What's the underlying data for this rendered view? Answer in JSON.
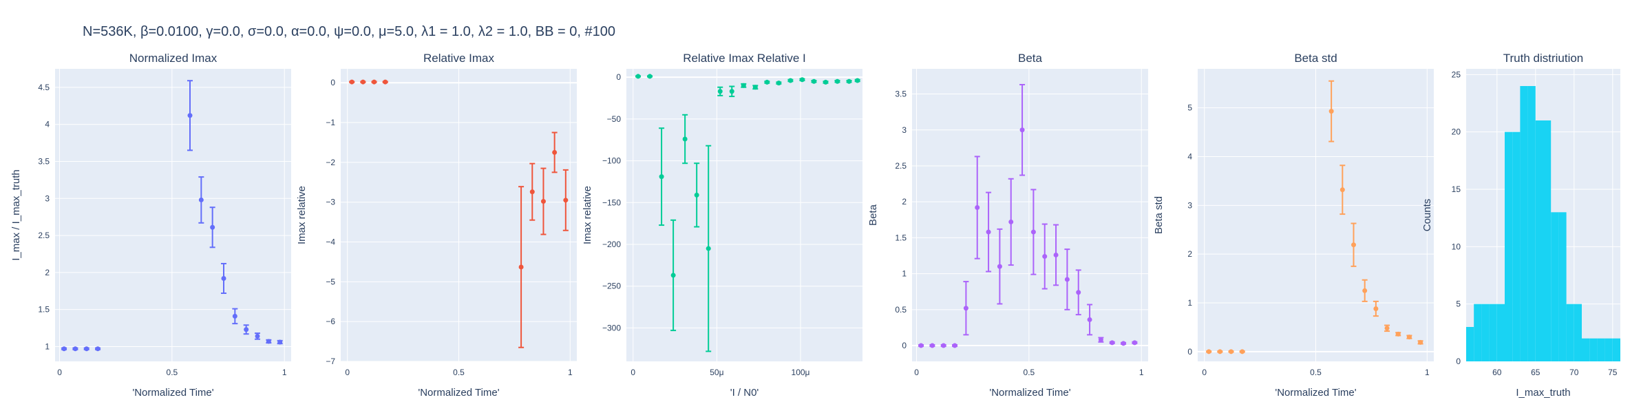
{
  "figure_title": "N=536K, β=0.0100, γ=0.0, σ=0.0,  α=0.0, ψ=0.0, μ=5.0, λ1 = 1.0, λ2 = 1.0, BB = 0, #100",
  "chart_data": [
    {
      "type": "scatter",
      "title": "Normalized Imax",
      "xlabel": "'Normalized Time'",
      "ylabel": "I_max / I_max_truth",
      "color": "#636efa",
      "xlim": [
        -0.02,
        1.03
      ],
      "ylim": [
        0.8,
        4.75
      ],
      "xticks": [
        0,
        0.5,
        1
      ],
      "xtick_labels": [
        "0",
        "0.5",
        "1"
      ],
      "yticks": [
        1,
        1.5,
        2,
        2.5,
        3,
        3.5,
        4,
        4.5
      ],
      "ytick_labels": [
        "1",
        "1.5",
        "2",
        "2.5",
        "3",
        "3.5",
        "4",
        "4.5"
      ],
      "x": [
        0.02,
        0.07,
        0.12,
        0.17,
        0.58,
        0.63,
        0.68,
        0.73,
        0.78,
        0.83,
        0.88,
        0.93,
        0.98
      ],
      "y": [
        0.97,
        0.97,
        0.97,
        0.97,
        4.12,
        2.98,
        2.61,
        1.92,
        1.41,
        1.23,
        1.14,
        1.07,
        1.06
      ],
      "err": [
        0.01,
        0.01,
        0.01,
        0.01,
        0.47,
        0.31,
        0.27,
        0.2,
        0.1,
        0.06,
        0.04,
        0.02,
        0.02
      ]
    },
    {
      "type": "scatter",
      "title": "Relative Imax",
      "xlabel": "'Normalized Time'",
      "ylabel": "Imax relative",
      "color": "#ef553b",
      "xlim": [
        -0.03,
        1.03
      ],
      "ylim": [
        -7,
        0.35
      ],
      "xticks": [
        0,
        0.5,
        1
      ],
      "xtick_labels": [
        "0",
        "0.5",
        "1"
      ],
      "yticks": [
        0,
        -1,
        -2,
        -3,
        -4,
        -5,
        -6,
        -7
      ],
      "ytick_labels": [
        "0",
        "−1",
        "−2",
        "−3",
        "−4",
        "−5",
        "−6",
        "−7"
      ],
      "x": [
        0.02,
        0.07,
        0.12,
        0.17,
        0.78,
        0.83,
        0.88,
        0.93,
        0.98
      ],
      "y": [
        0.02,
        0.02,
        0.02,
        0.02,
        -4.63,
        -2.74,
        -2.98,
        -1.75,
        -2.95
      ],
      "err": [
        0.01,
        0.01,
        0.01,
        0.01,
        2.02,
        0.71,
        0.83,
        0.5,
        0.76
      ]
    },
    {
      "type": "scatter",
      "title": "Relative Imax Relative I",
      "xlabel": "'I / N0'",
      "ylabel": "Imax relative",
      "color": "#00cc96",
      "xlim": [
        -4,
        137
      ],
      "ylim": [
        -340,
        10
      ],
      "xticks": [
        0,
        50,
        100
      ],
      "xtick_labels": [
        "0",
        "50μ",
        "100μ"
      ],
      "yticks": [
        0,
        -50,
        -100,
        -150,
        -200,
        -250,
        -300
      ],
      "ytick_labels": [
        "0",
        "−50",
        "−100",
        "−150",
        "−200",
        "−250",
        "−300"
      ],
      "x": [
        3,
        10,
        17,
        24,
        31,
        38,
        45,
        52,
        59,
        66,
        73,
        80,
        87,
        94,
        101,
        108,
        115,
        122,
        129,
        134
      ],
      "y": [
        1,
        1,
        -119,
        -237,
        -74,
        -141,
        -205,
        -17,
        -17,
        -10,
        -12,
        -6,
        -7,
        -4,
        -3,
        -5,
        -6,
        -5,
        -5,
        -4
      ],
      "err": [
        0.5,
        0.5,
        58,
        66,
        29,
        38,
        123,
        5,
        6,
        2,
        2,
        1,
        1,
        1,
        1,
        1,
        1,
        1,
        1,
        1
      ]
    },
    {
      "type": "scatter",
      "title": "Beta",
      "xlabel": "'Normalized Time'",
      "ylabel": "Beta",
      "color": "#ab63fa",
      "xlim": [
        -0.02,
        1.03
      ],
      "ylim": [
        -0.22,
        3.85
      ],
      "xticks": [
        0,
        0.5,
        1
      ],
      "xtick_labels": [
        "0",
        "0.5",
        "1"
      ],
      "yticks": [
        0,
        0.5,
        1,
        1.5,
        2,
        2.5,
        3,
        3.5
      ],
      "ytick_labels": [
        "0",
        "0.5",
        "1",
        "1.5",
        "2",
        "2.5",
        "3",
        "3.5"
      ],
      "x": [
        0.02,
        0.07,
        0.12,
        0.17,
        0.22,
        0.27,
        0.32,
        0.37,
        0.42,
        0.47,
        0.52,
        0.57,
        0.62,
        0.67,
        0.72,
        0.77,
        0.82,
        0.87,
        0.92,
        0.97
      ],
      "y": [
        0.0,
        0.0,
        0.0,
        0.0,
        0.52,
        1.92,
        1.58,
        1.1,
        1.72,
        3.0,
        1.58,
        1.24,
        1.26,
        0.92,
        0.74,
        0.36,
        0.08,
        0.04,
        0.03,
        0.04
      ],
      "err": [
        0.01,
        0.01,
        0.01,
        0.01,
        0.37,
        0.71,
        0.55,
        0.52,
        0.6,
        0.63,
        0.59,
        0.45,
        0.42,
        0.42,
        0.31,
        0.21,
        0.03,
        0.01,
        0.01,
        0.01
      ]
    },
    {
      "type": "scatter",
      "title": "Beta std",
      "xlabel": "'Normalized Time'",
      "ylabel": "Beta std",
      "color": "#ffa15a",
      "xlim": [
        -0.03,
        1.03
      ],
      "ylim": [
        -0.2,
        5.8
      ],
      "xticks": [
        0,
        0.5,
        1
      ],
      "xtick_labels": [
        "0",
        "0.5",
        "1"
      ],
      "yticks": [
        0,
        1,
        2,
        3,
        4,
        5
      ],
      "ytick_labels": [
        "0",
        "1",
        "2",
        "3",
        "4",
        "5"
      ],
      "x": [
        0.02,
        0.07,
        0.12,
        0.17,
        0.57,
        0.62,
        0.67,
        0.72,
        0.77,
        0.82,
        0.87,
        0.92,
        0.97
      ],
      "y": [
        0.0,
        0.0,
        0.0,
        0.0,
        4.93,
        3.32,
        2.19,
        1.25,
        0.88,
        0.48,
        0.36,
        0.3,
        0.19
      ],
      "err": [
        0.01,
        0.01,
        0.01,
        0.01,
        0.62,
        0.5,
        0.44,
        0.22,
        0.15,
        0.06,
        0.03,
        0.03,
        0.03
      ]
    },
    {
      "type": "bar",
      "title": "Truth distriution",
      "xlabel": "I_max_truth",
      "ylabel": "Counts",
      "color": "#19d3f3",
      "xlim": [
        56,
        76
      ],
      "ylim": [
        0,
        25.5
      ],
      "xticks": [
        60,
        65,
        70,
        75
      ],
      "xtick_labels": [
        "60",
        "65",
        "70",
        "75"
      ],
      "yticks": [
        0,
        5,
        10,
        15,
        20,
        25
      ],
      "ytick_labels": [
        "0",
        "5",
        "10",
        "15",
        "20",
        "25"
      ],
      "bin_edges": [
        56,
        57,
        58,
        59,
        60,
        61,
        62,
        63,
        64,
        65,
        66,
        67,
        68,
        69,
        70,
        71,
        72,
        73,
        74,
        75,
        76
      ],
      "values": [
        3,
        5,
        5,
        5,
        5,
        20,
        20,
        24,
        24,
        21,
        21,
        13,
        13,
        5,
        5,
        2,
        2,
        2,
        2,
        2
      ]
    }
  ]
}
